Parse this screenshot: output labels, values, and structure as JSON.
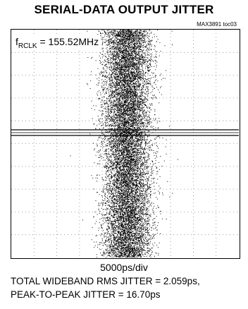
{
  "chart_data": {
    "type": "scatter",
    "title": "SERIAL-DATA OUTPUT JITTER",
    "figure_id": "MAX3891 toc03",
    "freq_label": {
      "prefix": "f",
      "sub": "RCLK",
      "value": " = 155.52MHz"
    },
    "xlabel": "5000ps/div",
    "annotations": [
      "TOTAL WIDEBAND RMS JITTER = 2.059ps,",
      "PEAK-TO-PEAK JITTER = 16.70ps"
    ],
    "grid": true,
    "divisions": {
      "x": 10,
      "y": 10
    },
    "rms_jitter_ps": 2.059,
    "peak_to_peak_jitter_ps": 16.7,
    "colors": {
      "trace": "#000000",
      "grid": "#888888",
      "background": "#ffffff"
    }
  }
}
